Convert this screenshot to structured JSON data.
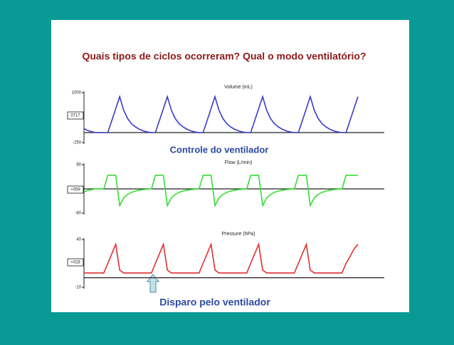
{
  "title": "Quais tipos de ciclos ocorreram? Qual o modo ventilatório?",
  "chart_data": [
    {
      "type": "line",
      "title": "Volume (mL)",
      "color": "#3a3acc",
      "ylim": [
        -250,
        1000
      ],
      "yticks": [
        -250,
        1000
      ],
      "readout": "0717",
      "values": [
        100,
        50,
        20,
        0,
        0,
        0,
        0,
        300,
        600,
        900,
        560,
        350,
        220,
        140,
        80,
        40,
        15,
        0,
        0,
        300,
        600,
        900,
        560,
        350,
        220,
        140,
        80,
        40,
        15,
        0,
        0,
        300,
        600,
        900,
        560,
        350,
        220,
        140,
        80,
        40,
        15,
        0,
        0,
        300,
        600,
        900,
        560,
        350,
        220,
        140,
        80,
        40,
        15,
        0,
        0,
        300,
        600,
        900,
        560,
        350,
        220,
        140,
        80,
        40,
        15,
        0,
        0,
        300,
        600,
        900
      ]
    },
    {
      "type": "line",
      "title": "Flow (L/min)",
      "color": "#33dd33",
      "ylim": [
        -80,
        80
      ],
      "yticks": [
        -80,
        80
      ],
      "readout": "+059",
      "values": [
        -10,
        -5,
        -2,
        0,
        0,
        0,
        45,
        45,
        45,
        -55,
        -30,
        -18,
        -11,
        -7,
        -4,
        -2,
        -1,
        0,
        45,
        45,
        45,
        -55,
        -30,
        -18,
        -11,
        -7,
        -4,
        -2,
        -1,
        0,
        45,
        45,
        45,
        -55,
        -30,
        -18,
        -11,
        -7,
        -4,
        -2,
        -1,
        0,
        45,
        45,
        45,
        -55,
        -30,
        -18,
        -11,
        -7,
        -4,
        -2,
        -1,
        0,
        45,
        45,
        45,
        -55,
        -30,
        -18,
        -11,
        -7,
        -4,
        -2,
        -1,
        0,
        45,
        45,
        45,
        45
      ]
    },
    {
      "type": "line",
      "title": "Pressure (hPa)",
      "color": "#e03030",
      "ylim": [
        -10,
        40
      ],
      "yticks": [
        -10,
        40
      ],
      "readout": "+028",
      "values": [
        5,
        5,
        5,
        5,
        5,
        5,
        15,
        25,
        35,
        8,
        5,
        5,
        5,
        5,
        5,
        5,
        5,
        5,
        15,
        25,
        35,
        8,
        5,
        5,
        5,
        5,
        5,
        5,
        5,
        5,
        15,
        25,
        35,
        8,
        5,
        5,
        5,
        5,
        5,
        5,
        5,
        5,
        15,
        25,
        35,
        8,
        5,
        5,
        5,
        5,
        5,
        5,
        5,
        5,
        15,
        25,
        35,
        8,
        5,
        5,
        5,
        5,
        5,
        5,
        5,
        5,
        15,
        22,
        30,
        35
      ]
    }
  ],
  "annotations": [
    "Controle do ventilador",
    "Disparo pelo ventilador"
  ]
}
